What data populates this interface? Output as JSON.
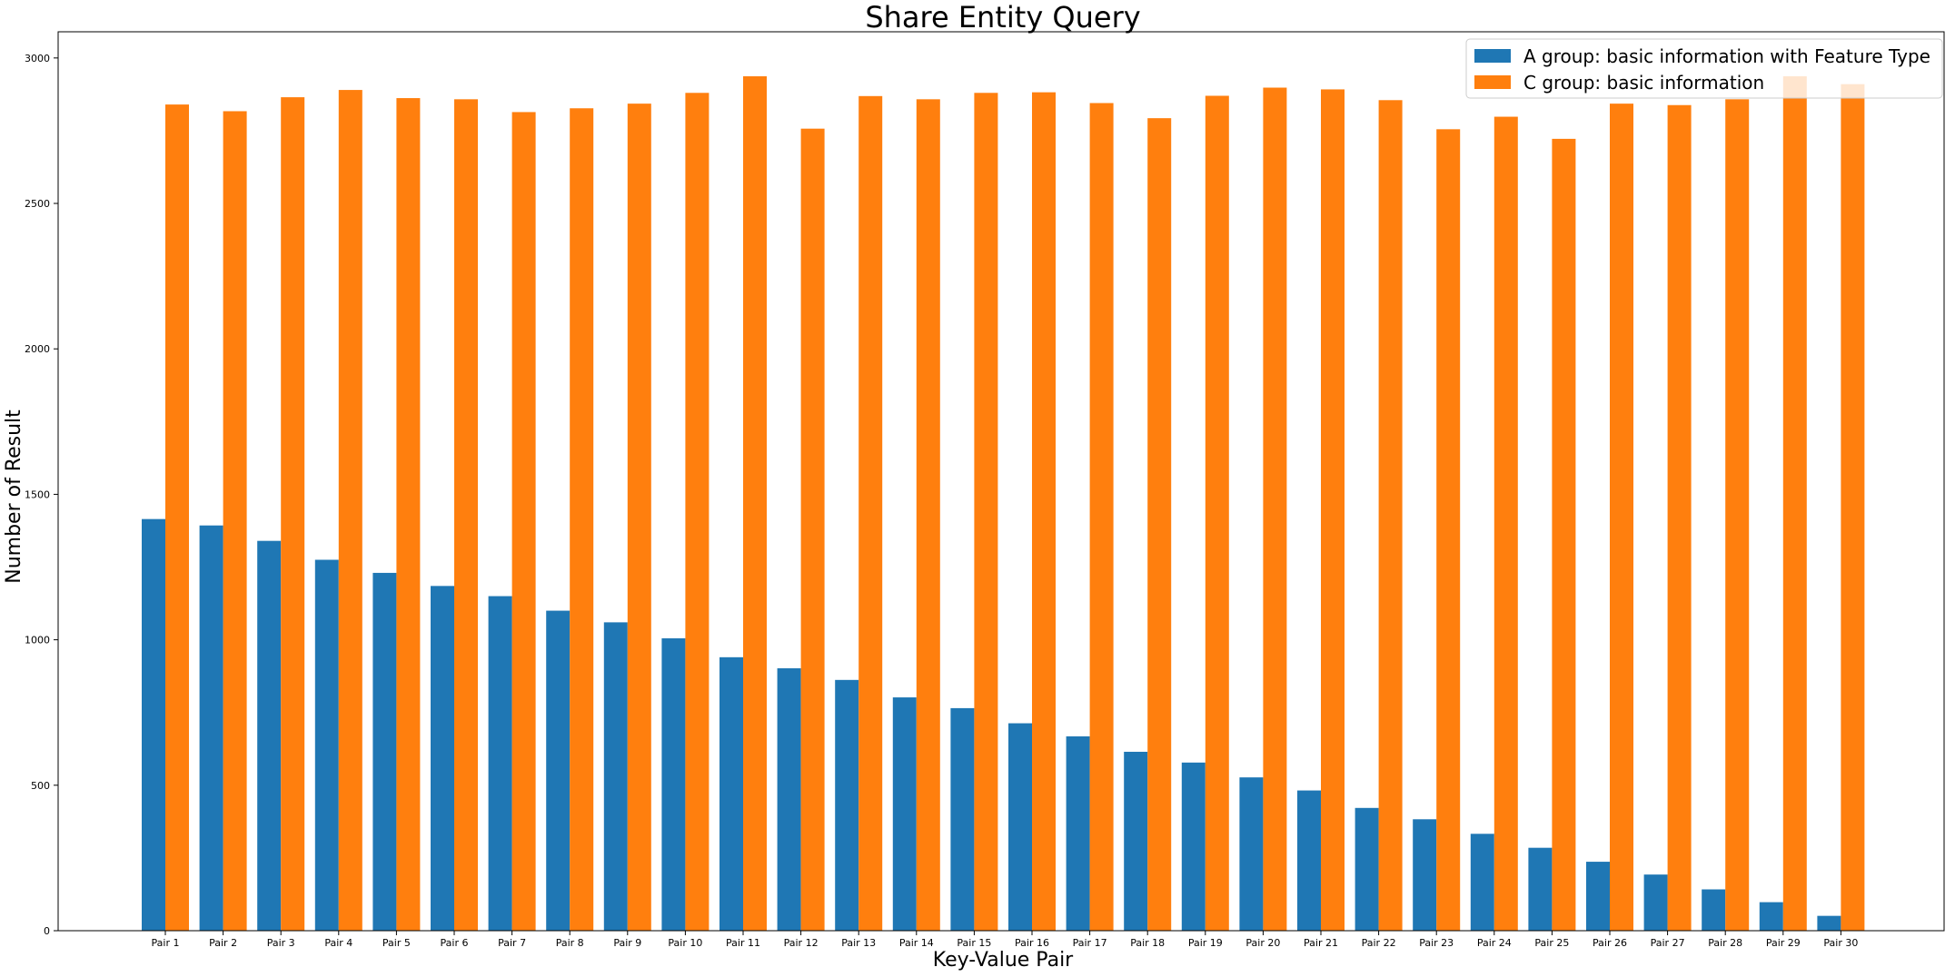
{
  "chart_data": {
    "type": "bar",
    "title": "Share Entity Query",
    "xlabel": "Key-Value Pair",
    "ylabel": "Number of Result",
    "ylim": [
      0,
      3090
    ],
    "yticks": [
      0,
      500,
      1000,
      1500,
      2000,
      2500,
      3000
    ],
    "ytick_labels": [
      "0",
      "500",
      "1000",
      "1500",
      "2000",
      "2500",
      "3000"
    ],
    "grid": false,
    "legend_position": "top-right",
    "categories": [
      "Pair 1",
      "Pair 2",
      "Pair 3",
      "Pair 4",
      "Pair 5",
      "Pair 6",
      "Pair 7",
      "Pair 8",
      "Pair 9",
      "Pair 10",
      "Pair 11",
      "Pair 12",
      "Pair 13",
      "Pair 14",
      "Pair 15",
      "Pair 16",
      "Pair 17",
      "Pair 18",
      "Pair 19",
      "Pair 20",
      "Pair 21",
      "Pair 22",
      "Pair 23",
      "Pair 24",
      "Pair 25",
      "Pair 26",
      "Pair 27",
      "Pair 28",
      "Pair 29",
      "Pair 30"
    ],
    "series": [
      {
        "name": "A group: basic information with Feature Type",
        "color": "#1f77b4",
        "values": [
          1415,
          1393,
          1340,
          1275,
          1230,
          1185,
          1150,
          1100,
          1060,
          1005,
          940,
          902,
          862,
          802,
          765,
          713,
          668,
          615,
          578,
          527,
          482,
          422,
          383,
          333,
          285,
          237,
          193,
          142,
          98,
          51
        ]
      },
      {
        "name": "C group: basic information",
        "color": "#ff7f0e",
        "values": [
          2840,
          2817,
          2865,
          2890,
          2862,
          2858,
          2814,
          2827,
          2843,
          2880,
          2937,
          2757,
          2869,
          2858,
          2880,
          2882,
          2845,
          2793,
          2870,
          2898,
          2892,
          2855,
          2755,
          2798,
          2722,
          2843,
          2838,
          2858,
          2937,
          2910
        ]
      }
    ]
  }
}
